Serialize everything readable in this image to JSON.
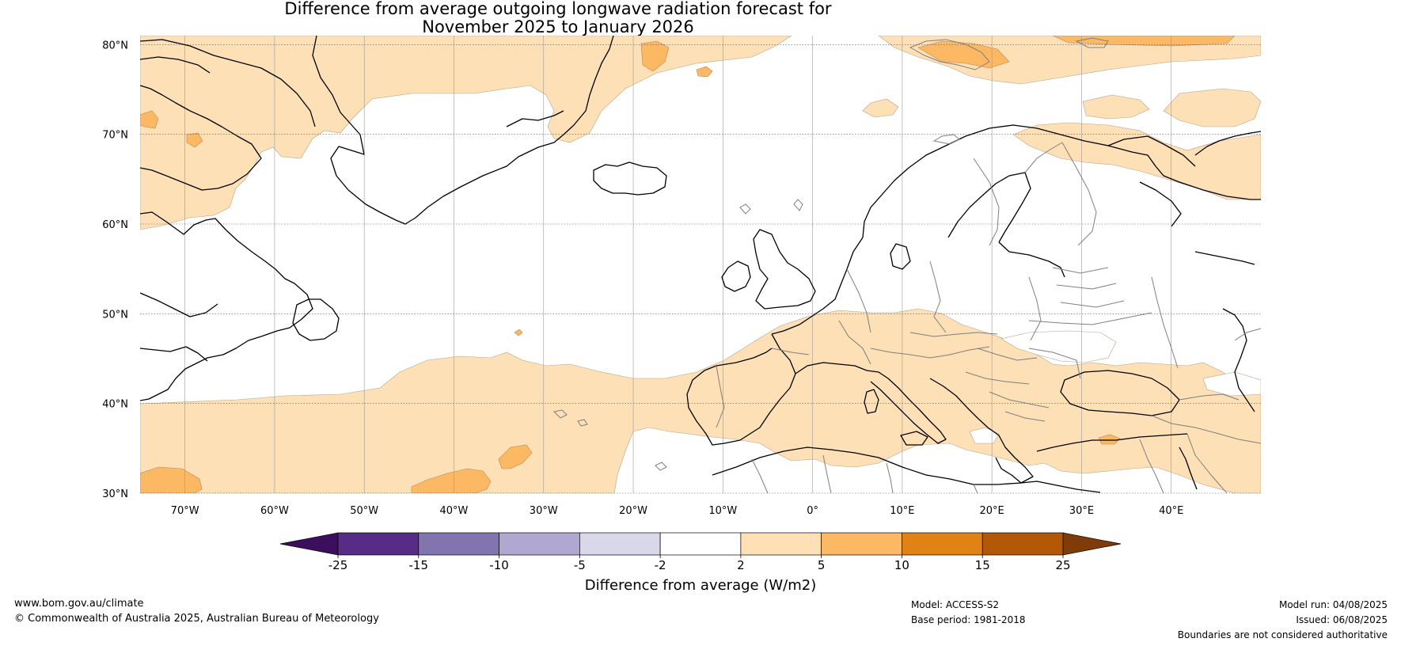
{
  "title": {
    "line1": "Difference from average outgoing longwave radiation forecast for",
    "line2": "November 2025 to January 2026"
  },
  "map": {
    "lat_labels": [
      "80°N",
      "70°N",
      "60°N",
      "50°N",
      "40°N",
      "30°N"
    ],
    "lat_values": [
      80,
      70,
      60,
      50,
      40,
      30
    ],
    "lon_labels": [
      "70°W",
      "60°W",
      "50°W",
      "40°W",
      "30°W",
      "20°W",
      "10°W",
      "0°",
      "10°E",
      "20°E",
      "30°E",
      "40°E"
    ],
    "lon_values": [
      -70,
      -60,
      -50,
      -40,
      -30,
      -20,
      -10,
      0,
      10,
      20,
      30,
      40
    ],
    "extent": {
      "lon_min": -75,
      "lon_max": 50,
      "lat_min": 30,
      "lat_max": 81
    },
    "colors": {
      "land_outline": "#000000",
      "border_line": "#7f7f7f",
      "grid_line": "#9a9a9a"
    }
  },
  "colorbar": {
    "bounds": [
      -25,
      -15,
      -10,
      -5,
      -2,
      2,
      5,
      10,
      15,
      25
    ],
    "tick_labels": [
      "-25",
      "-15",
      "-10",
      "-5",
      "-2",
      "2",
      "5",
      "10",
      "15",
      "25"
    ],
    "colors": [
      "#572c87",
      "#8275af",
      "#b1a8d1",
      "#d9d8ea",
      "#ffffff",
      "#fde0b6",
      "#fdb863",
      "#e08214",
      "#b35806"
    ],
    "under_color": "#3b0f5e",
    "over_color": "#7f3b08",
    "label": "Difference from average (W/m2)"
  },
  "footer": {
    "website": "www.bom.gov.au/climate",
    "copyright": "© Commonwealth of Australia 2025, Australian Bureau of Meteorology",
    "model": "Model: ACCESS-S2",
    "base_period": "Base period: 1981-2018",
    "model_run": "Model run: 04/08/2025",
    "issued": "Issued: 06/08/2025",
    "disclaimer": "Boundaries are not considered authoritative"
  }
}
